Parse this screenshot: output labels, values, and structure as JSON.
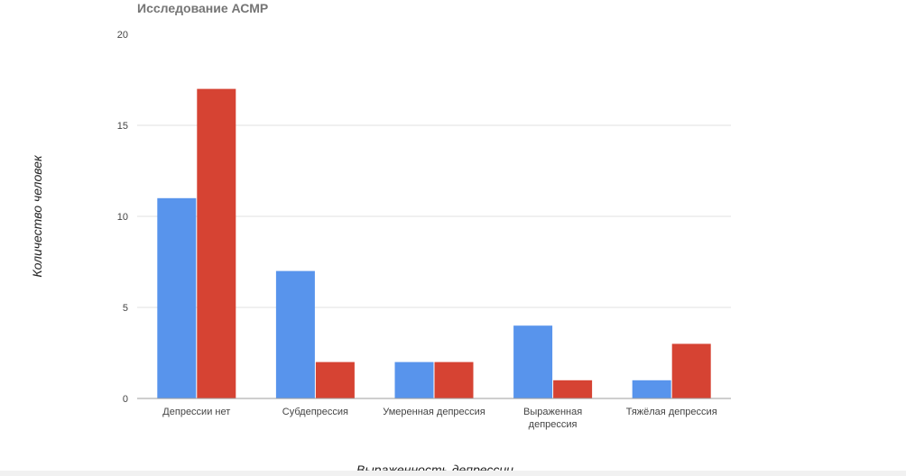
{
  "chart_data": {
    "type": "bar",
    "title": "Исследование АСМР",
    "xlabel": "Выраженность депрессии",
    "ylabel": "Количество человек",
    "categories": [
      [
        "Депрессии нет"
      ],
      [
        "Субдепрессия"
      ],
      [
        "Умеренная депрессия"
      ],
      [
        "Выраженная",
        "депрессия"
      ],
      [
        "Тяжёлая депрессия"
      ]
    ],
    "series": [
      {
        "values": [
          11,
          7,
          2,
          4,
          1
        ],
        "color": "#5894ec"
      },
      {
        "values": [
          17,
          2,
          2,
          1,
          3
        ],
        "color": "#d64333"
      }
    ],
    "ylim": [
      0,
      20
    ],
    "yticks": [
      0,
      5,
      10,
      15,
      20
    ],
    "grid": true,
    "legend": "none"
  }
}
